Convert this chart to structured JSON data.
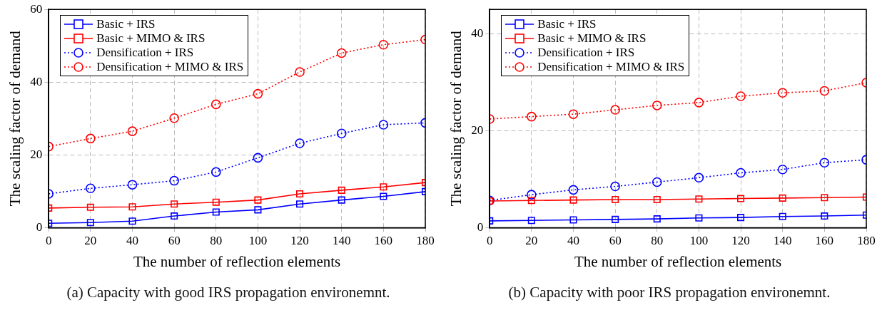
{
  "chart_data": [
    {
      "type": "line",
      "xlabel": "The number of reflection elements",
      "ylabel": "The scaling factor of demand",
      "annotations": [
        "(a) Capacity with good IRS propagation environemnt."
      ],
      "x": [
        0,
        20,
        40,
        60,
        80,
        100,
        120,
        140,
        160,
        180
      ],
      "xlim": [
        0,
        180
      ],
      "xticks": [
        0,
        20,
        40,
        60,
        80,
        100,
        120,
        140,
        160,
        180
      ],
      "ylim": [
        0,
        60
      ],
      "yticks": [
        0,
        20,
        40,
        60
      ],
      "grid": true,
      "legend": "top left",
      "series": [
        {
          "name": "Basic + IRS",
          "color": "#0000ff",
          "marker": "square",
          "line_style": "solid",
          "values": [
            1.2,
            1.4,
            1.8,
            3.2,
            4.3,
            4.9,
            6.5,
            7.6,
            8.6,
            9.9
          ]
        },
        {
          "name": "Basic + MIMO & IRS",
          "color": "#ff0000",
          "marker": "square",
          "line_style": "solid",
          "values": [
            5.4,
            5.6,
            5.7,
            6.5,
            7.0,
            7.6,
            9.3,
            10.3,
            11.2,
            12.4
          ]
        },
        {
          "name": "Densification + IRS",
          "color": "#0000ff",
          "marker": "circle",
          "line_style": "dotted",
          "values": [
            9.3,
            10.8,
            11.8,
            12.9,
            15.3,
            19.2,
            23.2,
            25.9,
            28.3,
            28.8
          ]
        },
        {
          "name": "Densification + MIMO & IRS",
          "color": "#ff0000",
          "marker": "circle",
          "line_style": "dotted",
          "values": [
            22.3,
            24.5,
            26.5,
            30.1,
            33.9,
            36.8,
            42.8,
            48.0,
            50.3,
            51.7
          ]
        }
      ]
    },
    {
      "type": "line",
      "xlabel": "The number of reflection elements",
      "ylabel": "The scaling factor of demand",
      "annotations": [
        "(b) Capacity with poor IRS propagation environemnt."
      ],
      "x": [
        0,
        20,
        40,
        60,
        80,
        100,
        120,
        140,
        160,
        180
      ],
      "xlim": [
        0,
        180
      ],
      "xticks": [
        0,
        20,
        40,
        60,
        80,
        100,
        120,
        140,
        160,
        180
      ],
      "ylim": [
        0,
        45
      ],
      "yticks": [
        0,
        20,
        40
      ],
      "grid": true,
      "legend": "top left",
      "series": [
        {
          "name": "Basic + IRS",
          "color": "#0000ff",
          "marker": "square",
          "line_style": "solid",
          "values": [
            1.4,
            1.5,
            1.6,
            1.7,
            1.8,
            2.0,
            2.1,
            2.3,
            2.4,
            2.6
          ]
        },
        {
          "name": "Basic + MIMO & IRS",
          "color": "#ff0000",
          "marker": "square",
          "line_style": "solid",
          "values": [
            5.5,
            5.6,
            5.7,
            5.8,
            5.8,
            5.9,
            6.0,
            6.1,
            6.2,
            6.3
          ]
        },
        {
          "name": "Densification + IRS",
          "color": "#0000ff",
          "marker": "circle",
          "line_style": "dotted",
          "values": [
            5.6,
            6.8,
            7.8,
            8.5,
            9.4,
            10.3,
            11.3,
            12.0,
            13.4,
            14.0
          ]
        },
        {
          "name": "Densification + MIMO & IRS",
          "color": "#ff0000",
          "marker": "circle",
          "line_style": "dotted",
          "values": [
            22.4,
            22.9,
            23.4,
            24.3,
            25.2,
            25.8,
            27.1,
            27.8,
            28.2,
            29.9
          ]
        }
      ]
    }
  ]
}
